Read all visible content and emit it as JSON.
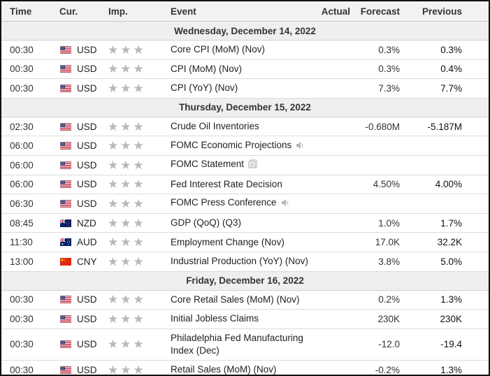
{
  "headers": {
    "time": "Time",
    "currency": "Cur.",
    "importance": "Imp.",
    "event": "Event",
    "actual": "Actual",
    "forecast": "Forecast",
    "previous": "Previous"
  },
  "dates": [
    "Wednesday, December 14, 2022",
    "Thursday, December 15, 2022",
    "Friday, December 16, 2022"
  ],
  "rows": [
    {
      "time": "00:30",
      "currency": "USD",
      "flag": "us-flag",
      "stars": 3,
      "event": "Core CPI (MoM) (Nov)",
      "actual": "",
      "forecast": "0.3%",
      "previous": "0.3%"
    },
    {
      "time": "00:30",
      "currency": "USD",
      "flag": "us-flag",
      "stars": 3,
      "event": "CPI (MoM) (Nov)",
      "actual": "",
      "forecast": "0.3%",
      "previous": "0.4%"
    },
    {
      "time": "00:30",
      "currency": "USD",
      "flag": "us-flag",
      "stars": 3,
      "event": "CPI (YoY) (Nov)",
      "actual": "",
      "forecast": "7.3%",
      "previous": "7.7%"
    },
    {
      "time": "02:30",
      "currency": "USD",
      "flag": "us-flag",
      "stars": 3,
      "event": "Crude Oil Inventories",
      "actual": "",
      "forecast": "-0.680M",
      "previous": "-5.187M"
    },
    {
      "time": "06:00",
      "currency": "USD",
      "flag": "us-flag",
      "stars": 3,
      "event": "FOMC Economic Projections",
      "actual": "",
      "forecast": "",
      "previous": "",
      "icon": "speaker-icon"
    },
    {
      "time": "06:00",
      "currency": "USD",
      "flag": "us-flag",
      "stars": 3,
      "event": "FOMC Statement",
      "actual": "",
      "forecast": "",
      "previous": "",
      "icon": "document-icon"
    },
    {
      "time": "06:00",
      "currency": "USD",
      "flag": "us-flag",
      "stars": 3,
      "event": "Fed Interest Rate Decision",
      "actual": "",
      "forecast": "4.50%",
      "previous": "4.00%"
    },
    {
      "time": "06:30",
      "currency": "USD",
      "flag": "us-flag",
      "stars": 3,
      "event": "FOMC Press Conference",
      "actual": "",
      "forecast": "",
      "previous": "",
      "icon": "speaker-icon"
    },
    {
      "time": "08:45",
      "currency": "NZD",
      "flag": "nz-flag",
      "stars": 3,
      "event": "GDP (QoQ) (Q3)",
      "actual": "",
      "forecast": "1.0%",
      "previous": "1.7%"
    },
    {
      "time": "11:30",
      "currency": "AUD",
      "flag": "au-flag",
      "stars": 3,
      "event": "Employment Change (Nov)",
      "actual": "",
      "forecast": "17.0K",
      "previous": "32.2K"
    },
    {
      "time": "13:00",
      "currency": "CNY",
      "flag": "cn-flag",
      "stars": 3,
      "event": "Industrial Production (YoY) (Nov)",
      "actual": "",
      "forecast": "3.8%",
      "previous": "5.0%"
    },
    {
      "time": "00:30",
      "currency": "USD",
      "flag": "us-flag",
      "stars": 3,
      "event": "Core Retail Sales (MoM) (Nov)",
      "actual": "",
      "forecast": "0.2%",
      "previous": "1.3%"
    },
    {
      "time": "00:30",
      "currency": "USD",
      "flag": "us-flag",
      "stars": 3,
      "event": "Initial Jobless Claims",
      "actual": "",
      "forecast": "230K",
      "previous": "230K"
    },
    {
      "time": "00:30",
      "currency": "USD",
      "flag": "us-flag",
      "stars": 3,
      "event": "Philadelphia Fed Manufacturing Index (Dec)",
      "actual": "",
      "forecast": "-12.0",
      "previous": "-19.4"
    },
    {
      "time": "00:30",
      "currency": "USD",
      "flag": "us-flag",
      "stars": 3,
      "event": "Retail Sales (MoM) (Nov)",
      "actual": "",
      "forecast": "-0.2%",
      "previous": "1.3%"
    }
  ],
  "colors": {
    "star": "#b8b8b8",
    "header_bg": "#f2f2f2",
    "date_bg": "#efefef",
    "border": "#111111"
  }
}
